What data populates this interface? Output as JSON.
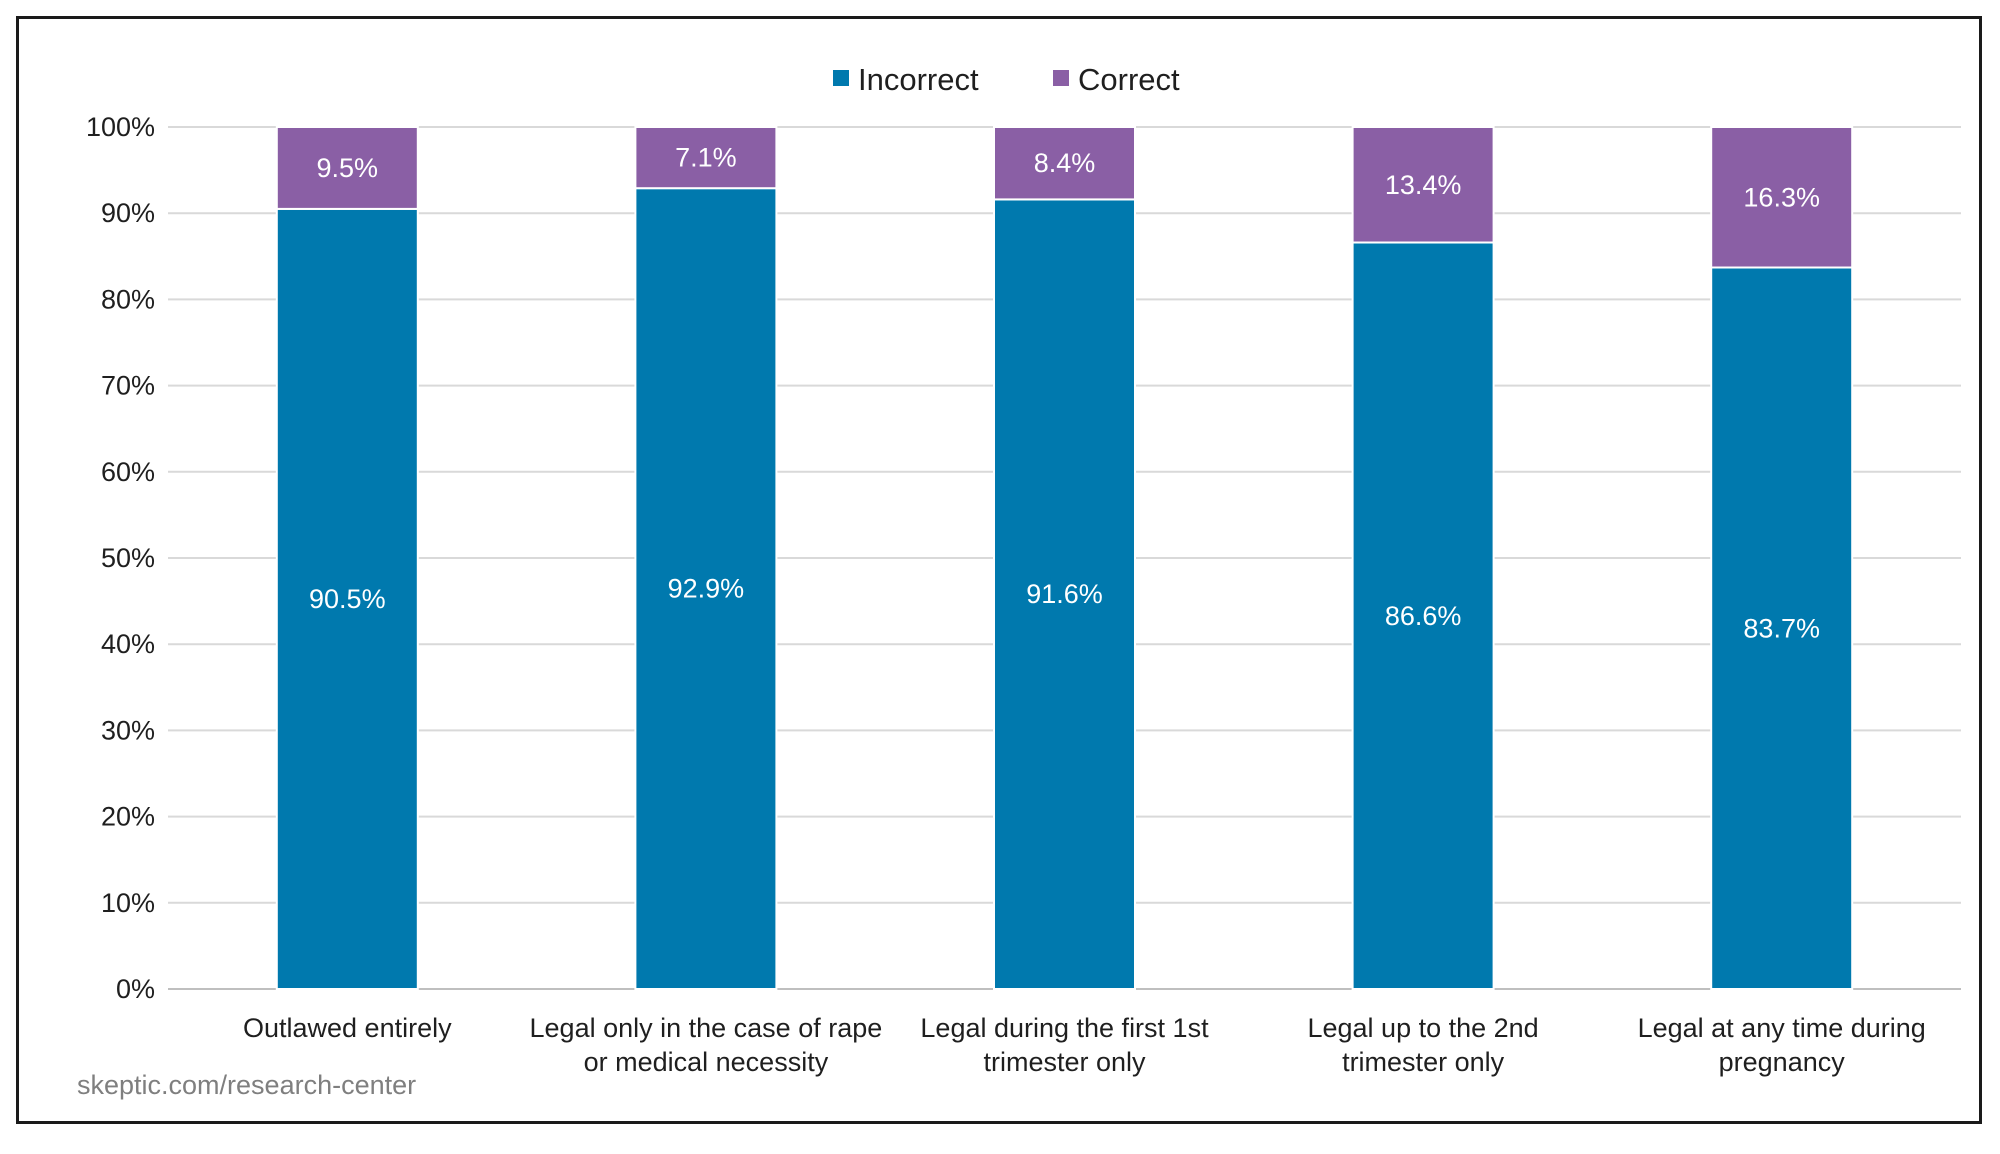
{
  "chart_data": {
    "type": "bar",
    "stacked": true,
    "categories": [
      [
        "Outlawed entirely"
      ],
      [
        "Legal only in the case of rape",
        "or medical necessity"
      ],
      [
        "Legal during the first 1st",
        "trimester only"
      ],
      [
        "Legal up to the 2nd",
        "trimester only"
      ],
      [
        "Legal at any time during",
        "pregnancy"
      ]
    ],
    "series": [
      {
        "name": "Incorrect",
        "color": "#0079ae",
        "values": [
          90.5,
          92.9,
          91.6,
          86.6,
          83.7
        ],
        "labels": [
          "90.5%",
          "92.9%",
          "91.6%",
          "86.6%",
          "83.7%"
        ]
      },
      {
        "name": "Correct",
        "color": "#8a5fa5",
        "values": [
          9.5,
          7.1,
          8.4,
          13.4,
          16.3
        ],
        "labels": [
          "9.5%",
          "7.1%",
          "8.4%",
          "13.4%",
          "16.3%"
        ]
      }
    ],
    "ylim": [
      0,
      100
    ],
    "yticks": [
      "0%",
      "10%",
      "20%",
      "30%",
      "40%",
      "50%",
      "60%",
      "70%",
      "80%",
      "90%",
      "100%"
    ],
    "grid": true,
    "legend_position": "top-center",
    "title": "",
    "xlabel": "",
    "ylabel": ""
  },
  "footer": {
    "source": "skeptic.com/research-center"
  }
}
